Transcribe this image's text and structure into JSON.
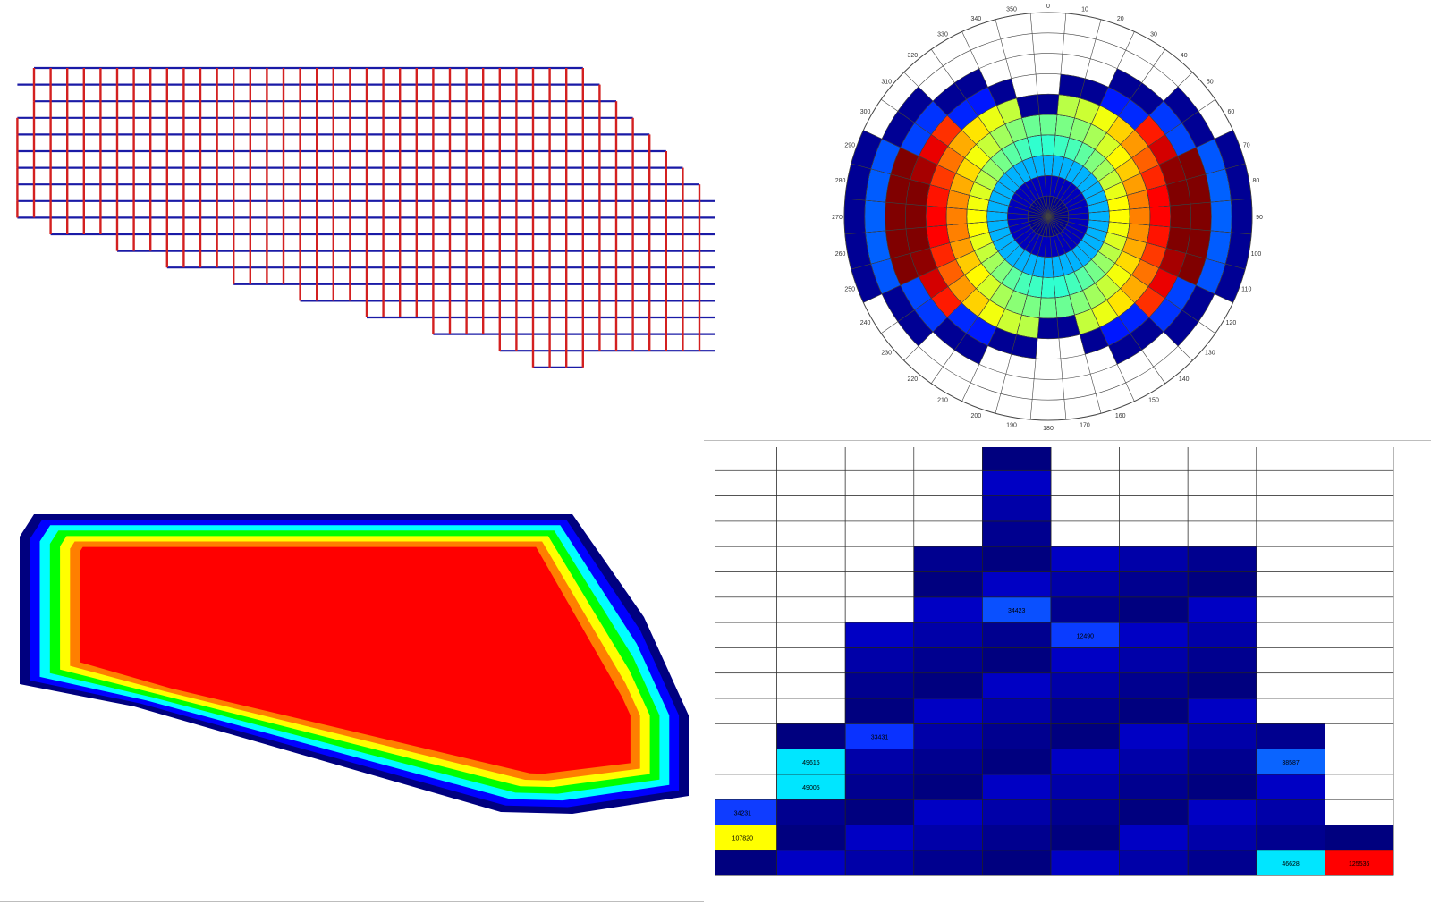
{
  "chart_data": [
    {
      "type": "other",
      "panel": "fault-grid",
      "row_spans": [
        [
          0,
          33
        ],
        [
          -1,
          34
        ],
        [
          0,
          35
        ],
        [
          -1,
          36
        ],
        [
          -1,
          37
        ],
        [
          -1,
          38
        ],
        [
          -1,
          39
        ],
        [
          -1,
          40
        ],
        [
          -1,
          41
        ],
        [
          -1,
          42
        ],
        [
          1,
          42
        ],
        [
          5,
          42
        ],
        [
          8,
          42
        ],
        [
          12,
          42
        ],
        [
          16,
          42
        ],
        [
          20,
          42
        ],
        [
          24,
          42
        ],
        [
          28,
          42
        ],
        [
          30,
          33
        ]
      ],
      "colors": {
        "horizontal": "#1a1aa6",
        "vertical": "#d32020"
      }
    },
    {
      "type": "rose",
      "panel": "polar-rose",
      "angle_tick_labels": [
        "0",
        "10",
        "20",
        "30",
        "40",
        "50",
        "60",
        "70",
        "80",
        "90",
        "100",
        "110",
        "120",
        "130",
        "140",
        "150",
        "160",
        "170",
        "180",
        "190",
        "200",
        "210",
        "220",
        "230",
        "240",
        "250",
        "260",
        "270",
        "280",
        "290",
        "300",
        "310",
        "320",
        "330",
        "340",
        "350"
      ],
      "sectors": 36,
      "rings": 10,
      "ring_profile": [
        0.02,
        0.06,
        0.3,
        0.4,
        0.45,
        0.5,
        0.58,
        0.68,
        0.8,
        0.85
      ],
      "sector_weights": [
        0.1,
        0.15,
        0.2,
        0.3,
        0.45,
        0.6,
        0.75,
        0.9,
        1.0,
        1.0,
        0.95,
        0.85,
        0.7,
        0.55,
        0.4,
        0.28,
        0.18,
        0.1,
        0.1,
        0.15,
        0.2,
        0.3,
        0.45,
        0.6,
        0.75,
        0.9,
        1.0,
        1.0,
        0.95,
        0.85,
        0.7,
        0.55,
        0.4,
        0.28,
        0.18,
        0.1
      ],
      "filled_ring_extent": [
        6,
        7,
        7,
        8,
        8,
        9,
        9,
        10,
        10,
        10,
        10,
        10,
        9,
        9,
        8,
        8,
        7,
        6,
        6,
        7,
        7,
        8,
        8,
        9,
        9,
        10,
        10,
        10,
        10,
        10,
        9,
        9,
        8,
        8,
        7,
        6
      ]
    },
    {
      "type": "heatmap",
      "panel": "distance-heatmap",
      "colorscale": [
        "#00007f",
        "#0000ff",
        "#00ffff",
        "#00ff00",
        "#ffff00",
        "#ff7f00",
        "#ff0000"
      ],
      "shape": "polygon with stepped edges; value increases toward interior",
      "bands": 7
    },
    {
      "type": "heatmap",
      "panel": "histogram-grid",
      "columns": 10,
      "rows": 17,
      "column_heights": [
        3,
        6,
        10,
        13,
        17,
        13,
        13,
        13,
        6,
        2
      ],
      "highlighted_cells": [
        {
          "col": 1,
          "row_from_bottom": 4,
          "value": "49615",
          "color": "#00e6ff"
        },
        {
          "col": 1,
          "row_from_bottom": 3,
          "value": "49005",
          "color": "#00e6ff"
        },
        {
          "col": 0,
          "row_from_bottom": 1,
          "value": "107820",
          "color": "#ffff00"
        },
        {
          "col": 0,
          "row_from_bottom": 2,
          "value": "34231",
          "color": "#0f3cff"
        },
        {
          "col": 8,
          "row_from_bottom": 4,
          "value": "38587",
          "color": "#0a64ff"
        },
        {
          "col": 8,
          "row_from_bottom": 0,
          "value": "46628",
          "color": "#00e6ff"
        },
        {
          "col": 9,
          "row_from_bottom": 0,
          "value": "125536",
          "color": "#ff0000"
        },
        {
          "col": 4,
          "row_from_bottom": 10,
          "value": "34423",
          "color": "#0a50ff"
        },
        {
          "col": 2,
          "row_from_bottom": 5,
          "value": "33431",
          "color": "#0a32ff"
        },
        {
          "col": 5,
          "row_from_bottom": 9,
          "value": "12490",
          "color": "#0a3cff"
        }
      ],
      "base_colors": [
        "#00007f",
        "#00008f",
        "#0000a8",
        "#0000c4",
        "#0000e0",
        "#0a14ff"
      ]
    }
  ]
}
